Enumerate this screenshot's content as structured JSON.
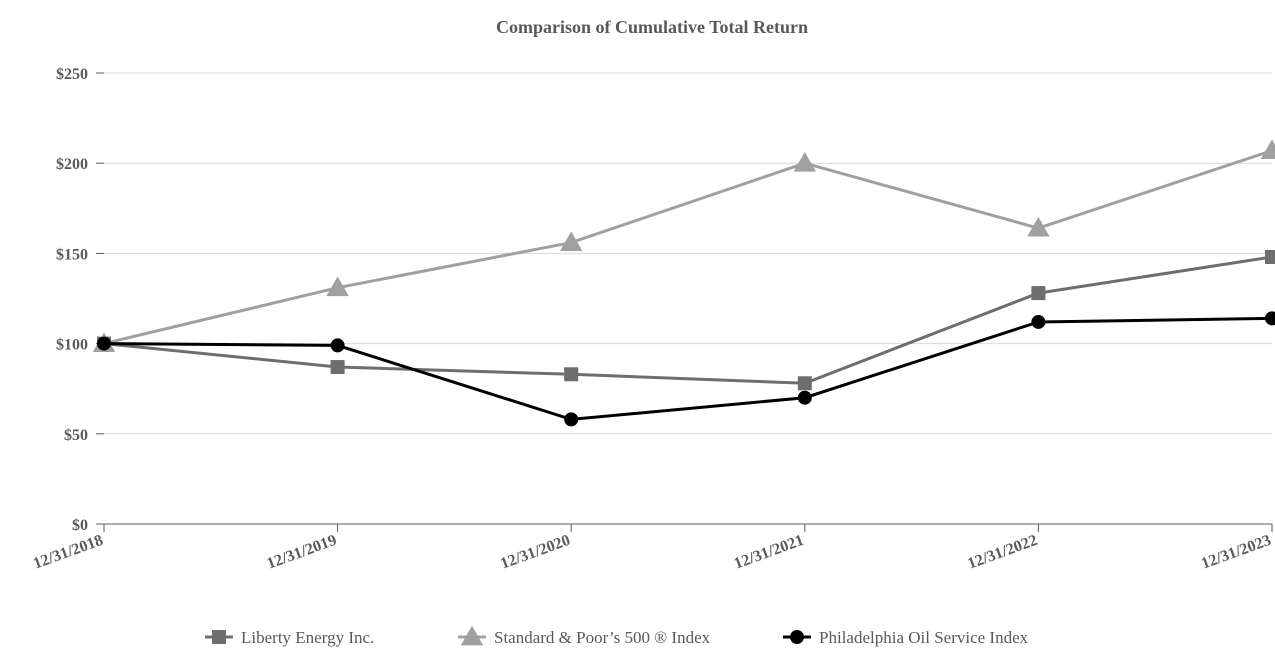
{
  "chart_data": {
    "type": "line",
    "title": "Comparison of Cumulative Total Return",
    "xlabel": "",
    "ylabel": "",
    "categories": [
      "12/31/2018",
      "12/31/2019",
      "12/31/2020",
      "12/31/2021",
      "12/31/2022",
      "12/31/2023"
    ],
    "ylim": [
      0,
      250
    ],
    "yticks": [
      0,
      50,
      100,
      150,
      200,
      250
    ],
    "ytick_labels": [
      "$0",
      "$50",
      "$100",
      "$150",
      "$200",
      "$250"
    ],
    "grid": "horizontal",
    "legend_position": "bottom",
    "series": [
      {
        "name": "Liberty Energy Inc.",
        "marker": "square",
        "color": "#6e6e6e",
        "values": [
          100,
          87,
          83,
          78,
          128,
          148
        ]
      },
      {
        "name": "Standard & Poor’s 500 ® Index",
        "marker": "triangle",
        "color": "#a0a0a0",
        "values": [
          100,
          131,
          156,
          200,
          164,
          207
        ]
      },
      {
        "name": "Philadelphia Oil Service Index",
        "marker": "circle",
        "color": "#000000",
        "values": [
          100,
          99,
          58,
          70,
          112,
          114
        ]
      }
    ]
  }
}
